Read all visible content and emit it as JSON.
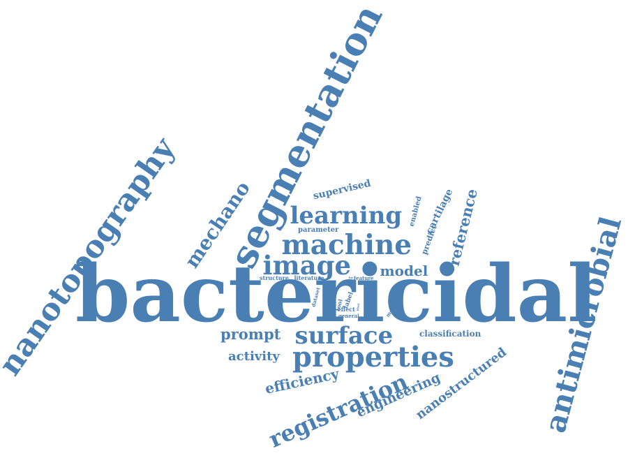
{
  "word_color": "#4a7fb4",
  "words": {
    "bactericidal": "bactericidal",
    "segmentation": "segmentation",
    "nanotopography": "nanotopography",
    "antimicrobial": "antimicrobial",
    "machine": "machine",
    "image": "image",
    "learning": "learning",
    "properties": "properties",
    "surface": "surface",
    "registration": "registration",
    "mechano": "mechano",
    "prompt": "prompt",
    "model": "model",
    "reference": "reference",
    "efficiency": "efficiency",
    "activity": "activity",
    "engineering": "engineering",
    "nanostructured": "nanostructured",
    "supervised": "supervised",
    "cartilage": "cartilage",
    "classification": "classification",
    "enabled": "enabled",
    "predict": "predict",
    "parameter": "parameter",
    "structure": "structure",
    "literature": "literature",
    "feature": "feature",
    "dataset": "dataset",
    "tool": "tool",
    "label": "label",
    "effect": "effect",
    "general": "general",
    "number": "number",
    "medical": "medical",
    "for": "for",
    "pixel": "pixel"
  }
}
